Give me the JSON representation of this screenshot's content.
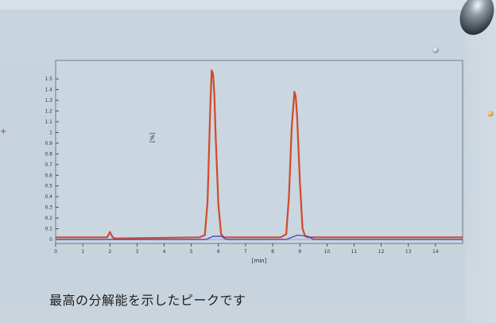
{
  "caption": "最高の分解能を示したピークです",
  "chart_data": {
    "type": "line",
    "xlabel": "[min]",
    "ylabel": "[%]",
    "xlim": [
      0,
      15
    ],
    "ylim": [
      0,
      1.65
    ],
    "x_ticks": [
      0,
      1,
      2,
      3,
      4,
      5,
      6,
      7,
      8,
      9,
      10,
      11,
      12,
      13,
      14
    ],
    "y_ticks": [
      0,
      0.1,
      0.2,
      0.3,
      0.4,
      0.5,
      0.6,
      0.7,
      0.8,
      0.9,
      1.0,
      1.1,
      1.2,
      1.3,
      1.4,
      1.5
    ],
    "series": [
      {
        "color": "#d24a28",
        "x": [
          0,
          1.9,
          2.0,
          2.1,
          2.2,
          5.3,
          5.5,
          5.6,
          5.7,
          5.75,
          5.8,
          5.85,
          5.9,
          6.0,
          6.1,
          6.2,
          6.35,
          6.5,
          8.3,
          8.5,
          8.6,
          8.7,
          8.8,
          8.85,
          8.9,
          9.0,
          9.1,
          9.2,
          9.3,
          9.5,
          15
        ],
        "y": [
          0.02,
          0.02,
          0.07,
          0.02,
          0.01,
          0.02,
          0.04,
          0.35,
          1.25,
          1.58,
          1.55,
          1.35,
          0.95,
          0.32,
          0.05,
          0.02,
          0.02,
          0.02,
          0.02,
          0.05,
          0.4,
          1.05,
          1.38,
          1.33,
          1.15,
          0.55,
          0.1,
          0.03,
          0.02,
          0.02,
          0.02
        ]
      },
      {
        "color": "#4a4bc2",
        "x": [
          0,
          5.55,
          5.8,
          6.1,
          6.3,
          8.5,
          8.9,
          9.3,
          9.5,
          15
        ],
        "y": [
          0.0,
          0.0,
          0.03,
          0.03,
          0.0,
          0.0,
          0.04,
          0.03,
          0.0,
          0.0
        ]
      }
    ]
  }
}
